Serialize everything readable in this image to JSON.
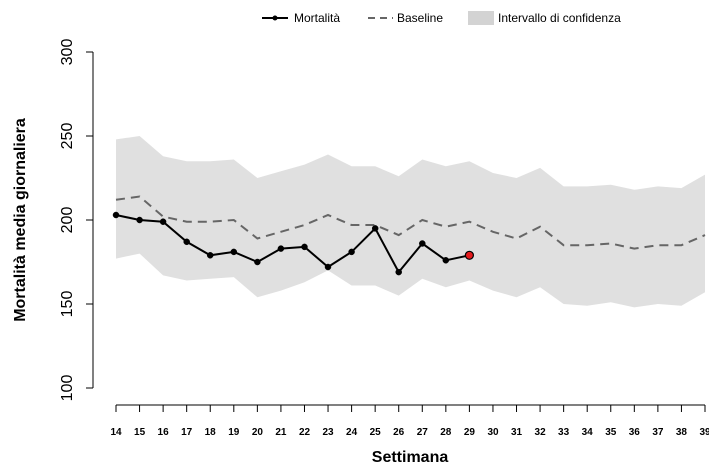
{
  "chart_data": {
    "type": "line",
    "title": "",
    "xlabel": "Settimana",
    "ylabel": "Mortalità media giornaliera",
    "x": [
      14,
      15,
      16,
      17,
      18,
      19,
      20,
      21,
      22,
      23,
      24,
      25,
      26,
      27,
      28,
      29,
      30,
      31,
      32,
      33,
      34,
      35,
      36,
      37,
      38,
      39
    ],
    "xlim": [
      14,
      39
    ],
    "ylim": [
      100,
      300
    ],
    "yticks": [
      100,
      150,
      200,
      250,
      300
    ],
    "legend_position": "top",
    "series": [
      {
        "name": "Mortalità",
        "kind": "line-points",
        "color": "#000000",
        "x": [
          14,
          15,
          16,
          17,
          18,
          19,
          20,
          21,
          22,
          23,
          24,
          25,
          26,
          27,
          28,
          29
        ],
        "values": [
          203,
          200,
          199,
          187,
          179,
          181,
          175,
          183,
          184,
          172,
          181,
          195,
          169,
          186,
          176,
          179
        ],
        "highlight_last": true,
        "highlight_color": "#e41a1c"
      },
      {
        "name": "Baseline",
        "kind": "dashed-line",
        "color": "#666666",
        "x": [
          14,
          15,
          16,
          17,
          18,
          19,
          20,
          21,
          22,
          23,
          24,
          25,
          26,
          27,
          28,
          29,
          30,
          31,
          32,
          33,
          34,
          35,
          36,
          37,
          38,
          39
        ],
        "values": [
          212,
          214,
          202,
          199,
          199,
          200,
          189,
          193,
          197,
          203,
          197,
          197,
          191,
          200,
          196,
          199,
          193,
          189,
          196,
          185,
          185,
          186,
          183,
          185,
          185,
          191
        ]
      },
      {
        "name": "Intervallo di confidenza",
        "kind": "band",
        "color": "#e0e0e0",
        "x": [
          14,
          15,
          16,
          17,
          18,
          19,
          20,
          21,
          22,
          23,
          24,
          25,
          26,
          27,
          28,
          29,
          30,
          31,
          32,
          33,
          34,
          35,
          36,
          37,
          38,
          39
        ],
        "upper": [
          248,
          250,
          238,
          235,
          235,
          236,
          225,
          229,
          233,
          239,
          232,
          232,
          226,
          236,
          232,
          235,
          228,
          225,
          231,
          220,
          220,
          221,
          218,
          220,
          219,
          227
        ],
        "lower": [
          177,
          180,
          167,
          164,
          165,
          166,
          154,
          158,
          163,
          170,
          161,
          161,
          155,
          165,
          160,
          164,
          158,
          154,
          160,
          150,
          149,
          151,
          148,
          150,
          149,
          157
        ]
      }
    ]
  }
}
